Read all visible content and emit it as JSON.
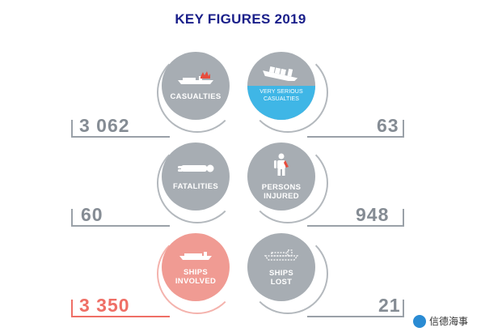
{
  "title": "KEY FIGURES 2019",
  "items": [
    {
      "label": "CASUALTIES",
      "value": "3 062",
      "icon": "ship-fire-icon",
      "color": "#a7adb3"
    },
    {
      "label": "VERY SERIOUS\nCASUALTIES",
      "value": "63",
      "icon": "sinking-ship-icon",
      "color": "#a7adb3",
      "water_color": "#3fb6e6"
    },
    {
      "label": "FATALITIES",
      "value": "60",
      "icon": "lying-person-icon",
      "color": "#a7adb3"
    },
    {
      "label": "PERSONS\nINJURED",
      "value": "948",
      "icon": "injured-person-icon",
      "color": "#a7adb3"
    },
    {
      "label": "SHIPS\nINVOLVED",
      "value": "3 350",
      "icon": "ship-icon",
      "color": "#f09b93",
      "value_color": "#ef6f66"
    },
    {
      "label": "SHIPS\nLOST",
      "value": "21",
      "icon": "lost-ship-outline-icon",
      "color": "#a7adb3"
    }
  ],
  "watermark": "信德海事"
}
